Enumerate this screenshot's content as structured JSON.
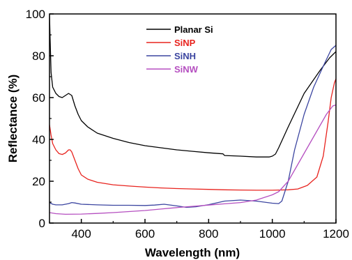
{
  "chart_data": {
    "type": "line",
    "xlabel": "Wavelength (nm)",
    "ylabel": "Reflectance (%)",
    "xlim": [
      300,
      1200
    ],
    "ylim": [
      0,
      100
    ],
    "x_ticks": [
      400,
      600,
      800,
      1000,
      1200
    ],
    "y_ticks": [
      0,
      20,
      40,
      60,
      80,
      100
    ],
    "grid": false,
    "legend_position": "top-center",
    "series": [
      {
        "name": "Planar Si",
        "color": "#000000",
        "points": [
          [
            300,
            100
          ],
          [
            302,
            88
          ],
          [
            305,
            72
          ],
          [
            310,
            65
          ],
          [
            320,
            62
          ],
          [
            330,
            60.5
          ],
          [
            340,
            60
          ],
          [
            350,
            61
          ],
          [
            360,
            62
          ],
          [
            370,
            61
          ],
          [
            380,
            56
          ],
          [
            390,
            52
          ],
          [
            400,
            49
          ],
          [
            420,
            46
          ],
          [
            450,
            43
          ],
          [
            500,
            40.5
          ],
          [
            550,
            38.5
          ],
          [
            600,
            37
          ],
          [
            650,
            36
          ],
          [
            700,
            35
          ],
          [
            750,
            34.3
          ],
          [
            800,
            33.6
          ],
          [
            845,
            33.1
          ],
          [
            850,
            32.3
          ],
          [
            900,
            32
          ],
          [
            950,
            31.6
          ],
          [
            990,
            31.6
          ],
          [
            1000,
            32
          ],
          [
            1010,
            33
          ],
          [
            1020,
            36
          ],
          [
            1050,
            46
          ],
          [
            1100,
            62
          ],
          [
            1150,
            73
          ],
          [
            1180,
            79
          ],
          [
            1200,
            82
          ]
        ]
      },
      {
        "name": "SiNP",
        "color": "#e8231e",
        "points": [
          [
            300,
            47
          ],
          [
            305,
            42
          ],
          [
            310,
            38
          ],
          [
            320,
            35
          ],
          [
            330,
            33.2
          ],
          [
            340,
            32.8
          ],
          [
            350,
            33.5
          ],
          [
            360,
            35
          ],
          [
            365,
            35
          ],
          [
            370,
            34
          ],
          [
            380,
            30
          ],
          [
            390,
            26
          ],
          [
            400,
            23
          ],
          [
            420,
            21
          ],
          [
            450,
            19.5
          ],
          [
            500,
            18.3
          ],
          [
            550,
            17.7
          ],
          [
            600,
            17.2
          ],
          [
            650,
            16.8
          ],
          [
            700,
            16.5
          ],
          [
            750,
            16.3
          ],
          [
            800,
            16.1
          ],
          [
            850,
            15.9
          ],
          [
            900,
            15.8
          ],
          [
            950,
            15.7
          ],
          [
            1000,
            15.7
          ],
          [
            1050,
            15.9
          ],
          [
            1080,
            16.3
          ],
          [
            1110,
            18
          ],
          [
            1140,
            22
          ],
          [
            1160,
            32
          ],
          [
            1175,
            48
          ],
          [
            1185,
            60
          ],
          [
            1195,
            67
          ],
          [
            1200,
            69
          ]
        ]
      },
      {
        "name": "SiNH",
        "color": "#3b45a0",
        "points": [
          [
            300,
            9.8
          ],
          [
            310,
            9
          ],
          [
            320,
            8.7
          ],
          [
            340,
            8.7
          ],
          [
            360,
            9.3
          ],
          [
            370,
            9.8
          ],
          [
            380,
            9.6
          ],
          [
            400,
            9
          ],
          [
            450,
            8.7
          ],
          [
            500,
            8.5
          ],
          [
            550,
            8.5
          ],
          [
            600,
            8.4
          ],
          [
            630,
            8.6
          ],
          [
            660,
            9
          ],
          [
            700,
            8.2
          ],
          [
            730,
            7.5
          ],
          [
            760,
            7.8
          ],
          [
            800,
            8.8
          ],
          [
            850,
            10.5
          ],
          [
            900,
            11
          ],
          [
            950,
            10.5
          ],
          [
            1000,
            9.5
          ],
          [
            1020,
            9.3
          ],
          [
            1030,
            10.5
          ],
          [
            1050,
            20
          ],
          [
            1070,
            35
          ],
          [
            1100,
            52
          ],
          [
            1130,
            65
          ],
          [
            1160,
            75
          ],
          [
            1185,
            83
          ],
          [
            1200,
            85
          ]
        ]
      },
      {
        "name": "SiNW",
        "color": "#b54fc0",
        "points": [
          [
            300,
            5
          ],
          [
            320,
            4.5
          ],
          [
            350,
            4.2
          ],
          [
            400,
            4.3
          ],
          [
            450,
            4.6
          ],
          [
            500,
            5
          ],
          [
            550,
            5.5
          ],
          [
            600,
            6
          ],
          [
            650,
            6.7
          ],
          [
            700,
            7.4
          ],
          [
            750,
            8
          ],
          [
            800,
            8.6
          ],
          [
            850,
            9.2
          ],
          [
            900,
            9.8
          ],
          [
            950,
            11
          ],
          [
            1000,
            13.5
          ],
          [
            1020,
            15
          ],
          [
            1050,
            20
          ],
          [
            1080,
            28
          ],
          [
            1110,
            36
          ],
          [
            1140,
            44
          ],
          [
            1170,
            52
          ],
          [
            1190,
            56
          ],
          [
            1200,
            56.5
          ]
        ]
      }
    ]
  }
}
